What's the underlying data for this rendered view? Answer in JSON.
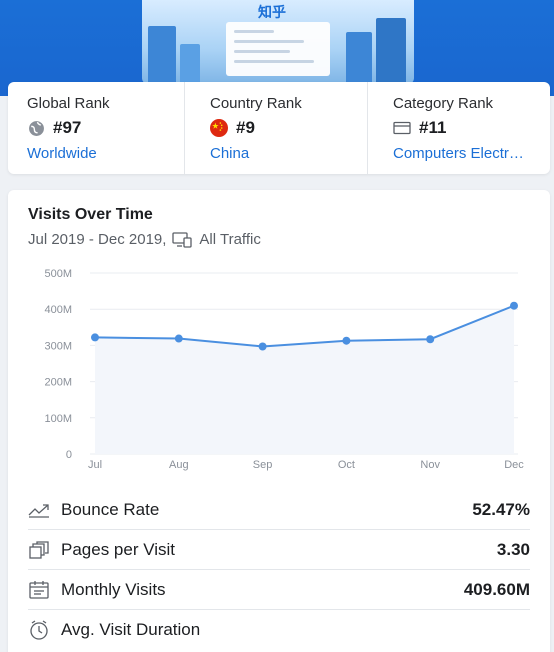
{
  "hero": {
    "thumbnail_logo": "知乎"
  },
  "ranks": [
    {
      "label": "Global Rank",
      "icon": "globe-icon",
      "value": "#97",
      "link": "Worldwide"
    },
    {
      "label": "Country Rank",
      "icon": "china-flag-icon",
      "value": "#9",
      "link": "China"
    },
    {
      "label": "Category Rank",
      "icon": "category-icon",
      "value": "#11",
      "link": "Computers Electr…"
    }
  ],
  "visits": {
    "title": "Visits Over Time",
    "date_range": "Jul 2019 - Dec 2019,",
    "traffic": "All Traffic"
  },
  "chart_data": {
    "type": "area",
    "categories": [
      "Jul",
      "Aug",
      "Sep",
      "Oct",
      "Nov",
      "Dec"
    ],
    "values": [
      322,
      319,
      297,
      313,
      317,
      409.6
    ],
    "unit": "M",
    "ylim": [
      0,
      500
    ],
    "yticks": [
      "0",
      "100M",
      "200M",
      "300M",
      "400M",
      "500M"
    ],
    "grid": true,
    "color": "#4a8fe0",
    "fill": "#f3f6fb"
  },
  "metrics": [
    {
      "icon": "bounce-rate-icon",
      "label": "Bounce Rate",
      "value": "52.47%"
    },
    {
      "icon": "pages-per-visit-icon",
      "label": "Pages per Visit",
      "value": "3.30"
    },
    {
      "icon": "monthly-visits-icon",
      "label": "Monthly Visits",
      "value": "409.60M"
    },
    {
      "icon": "visit-duration-icon",
      "label": "Avg. Visit Duration",
      "value": ""
    }
  ],
  "colors": {
    "brand": "#1b6fd6",
    "link": "#1b6fd6",
    "line": "#4a8fe0"
  }
}
